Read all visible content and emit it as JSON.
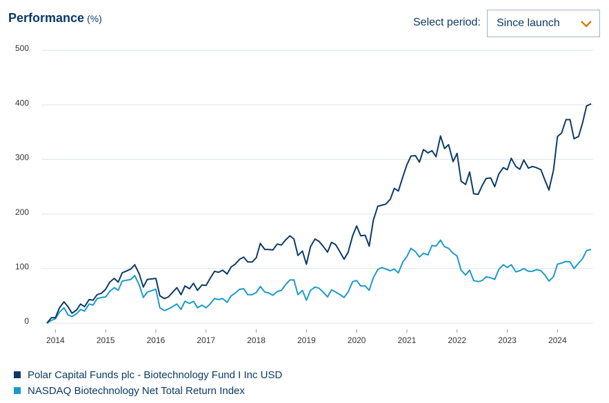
{
  "header": {
    "title": "Performance",
    "unit": "(%)",
    "select_label": "Select period:",
    "select_value": "Since launch"
  },
  "chart_data": {
    "type": "line",
    "x": [
      2013.83,
      2013.92,
      2014,
      2014.08,
      2014.17,
      2014.25,
      2014.33,
      2014.42,
      2014.5,
      2014.58,
      2014.67,
      2014.75,
      2014.83,
      2014.92,
      2015,
      2015.08,
      2015.17,
      2015.25,
      2015.33,
      2015.5,
      2015.58,
      2015.67,
      2015.75,
      2015.83,
      2016,
      2016.08,
      2016.17,
      2016.25,
      2016.33,
      2016.42,
      2016.5,
      2016.58,
      2016.67,
      2016.75,
      2016.83,
      2016.92,
      2017,
      2017.08,
      2017.17,
      2017.25,
      2017.33,
      2017.42,
      2017.5,
      2017.58,
      2017.67,
      2017.75,
      2017.83,
      2017.92,
      2018,
      2018.08,
      2018.17,
      2018.25,
      2018.33,
      2018.42,
      2018.5,
      2018.58,
      2018.67,
      2018.75,
      2018.83,
      2018.92,
      2019,
      2019.08,
      2019.17,
      2019.25,
      2019.33,
      2019.42,
      2019.5,
      2019.58,
      2019.67,
      2019.75,
      2019.83,
      2019.92,
      2020,
      2020.08,
      2020.17,
      2020.25,
      2020.33,
      2020.42,
      2020.5,
      2020.58,
      2020.67,
      2020.75,
      2020.83,
      2020.92,
      2021,
      2021.08,
      2021.17,
      2021.25,
      2021.33,
      2021.42,
      2021.5,
      2021.58,
      2021.67,
      2021.75,
      2021.83,
      2021.92,
      2022,
      2022.08,
      2022.17,
      2022.25,
      2022.33,
      2022.42,
      2022.5,
      2022.58,
      2022.67,
      2022.75,
      2022.83,
      2022.92,
      2023,
      2023.08,
      2023.17,
      2023.25,
      2023.33,
      2023.42,
      2023.5,
      2023.58,
      2023.67,
      2023.75,
      2023.83,
      2023.92,
      2024,
      2024.08,
      2024.17,
      2024.25,
      2024.33,
      2024.42,
      2024.5,
      2024.58,
      2024.67
    ],
    "series": [
      {
        "name": "Polar Capital Funds plc - Biotechnology Fund I Inc USD",
        "color": "#0b3a66",
        "values": [
          0,
          10,
          10,
          28,
          39,
          30,
          18,
          24,
          35,
          30,
          43,
          42,
          52,
          55,
          62,
          75,
          82,
          75,
          92,
          99,
          107,
          90,
          66,
          80,
          82,
          50,
          45,
          48,
          56,
          65,
          52,
          68,
          63,
          73,
          60,
          70,
          69,
          82,
          95,
          93,
          97,
          90,
          103,
          108,
          117,
          121,
          112,
          112,
          120,
          146,
          135,
          135,
          134,
          145,
          143,
          152,
          160,
          154,
          124,
          132,
          108,
          140,
          154,
          150,
          141,
          130,
          148,
          144,
          130,
          117,
          130,
          160,
          178,
          160,
          161,
          141,
          188,
          214,
          216,
          218,
          227,
          247,
          242,
          268,
          290,
          306,
          307,
          295,
          318,
          312,
          316,
          305,
          343,
          320,
          327,
          296,
          311,
          260,
          254,
          277,
          237,
          236,
          252,
          265,
          266,
          250,
          273,
          285,
          281,
          302,
          287,
          282,
          299,
          284,
          287,
          285,
          281,
          262,
          244,
          280,
          342,
          348,
          373,
          373,
          338,
          342,
          367,
          398,
          402
        ]
      },
      {
        "name": "NASDAQ Biotechnology Net Total Return Index",
        "color": "#1a9ac9",
        "values": [
          0,
          5,
          8,
          20,
          28,
          15,
          12,
          17,
          25,
          22,
          35,
          33,
          45,
          47,
          48,
          58,
          65,
          60,
          77,
          80,
          87,
          70,
          47,
          57,
          62,
          28,
          23,
          26,
          30,
          35,
          25,
          40,
          36,
          40,
          28,
          33,
          28,
          35,
          45,
          43,
          45,
          38,
          50,
          55,
          62,
          63,
          52,
          52,
          56,
          67,
          57,
          55,
          51,
          58,
          60,
          70,
          79,
          79,
          52,
          60,
          42,
          60,
          66,
          64,
          57,
          48,
          61,
          57,
          52,
          47,
          57,
          76,
          78,
          68,
          68,
          60,
          83,
          98,
          102,
          99,
          96,
          99,
          92,
          112,
          122,
          137,
          131,
          121,
          128,
          125,
          142,
          141,
          152,
          140,
          137,
          128,
          123,
          97,
          88,
          97,
          78,
          76,
          78,
          85,
          83,
          80,
          98,
          107,
          102,
          107,
          94,
          96,
          100,
          95,
          95,
          98,
          96,
          88,
          77,
          85,
          108,
          110,
          113,
          112,
          100,
          110,
          118,
          133,
          135
        ]
      }
    ],
    "xlim": [
      2013.72,
      2024.71
    ],
    "xticks": [
      2014,
      2015,
      2016,
      2017,
      2018,
      2019,
      2020,
      2021,
      2022,
      2023,
      2024
    ],
    "ylim": [
      0,
      500
    ],
    "yticks": [
      0,
      100,
      200,
      300,
      400,
      500
    ],
    "grid": true
  }
}
